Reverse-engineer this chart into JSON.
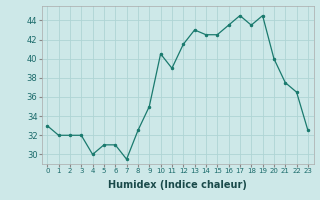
{
  "x": [
    0,
    1,
    2,
    3,
    4,
    5,
    6,
    7,
    8,
    9,
    10,
    11,
    12,
    13,
    14,
    15,
    16,
    17,
    18,
    19,
    20,
    21,
    22,
    23
  ],
  "y": [
    33,
    32,
    32,
    32,
    30,
    31,
    31,
    29.5,
    32.5,
    35,
    40.5,
    39,
    41.5,
    43,
    42.5,
    42.5,
    43.5,
    44.5,
    43.5,
    44.5,
    40,
    37.5,
    36.5,
    32.5
  ],
  "line_color": "#1a7a6e",
  "marker": ".",
  "marker_size": 3,
  "bg_color": "#cde8e8",
  "grid_color": "#afd4d4",
  "xlabel": "Humidex (Indice chaleur)",
  "xlabel_fontsize": 7,
  "ylim": [
    29,
    45.5
  ],
  "xlim": [
    -0.5,
    23.5
  ],
  "yticks": [
    30,
    32,
    34,
    36,
    38,
    40,
    42,
    44
  ],
  "xtick_fontsize": 5,
  "ytick_fontsize": 6
}
